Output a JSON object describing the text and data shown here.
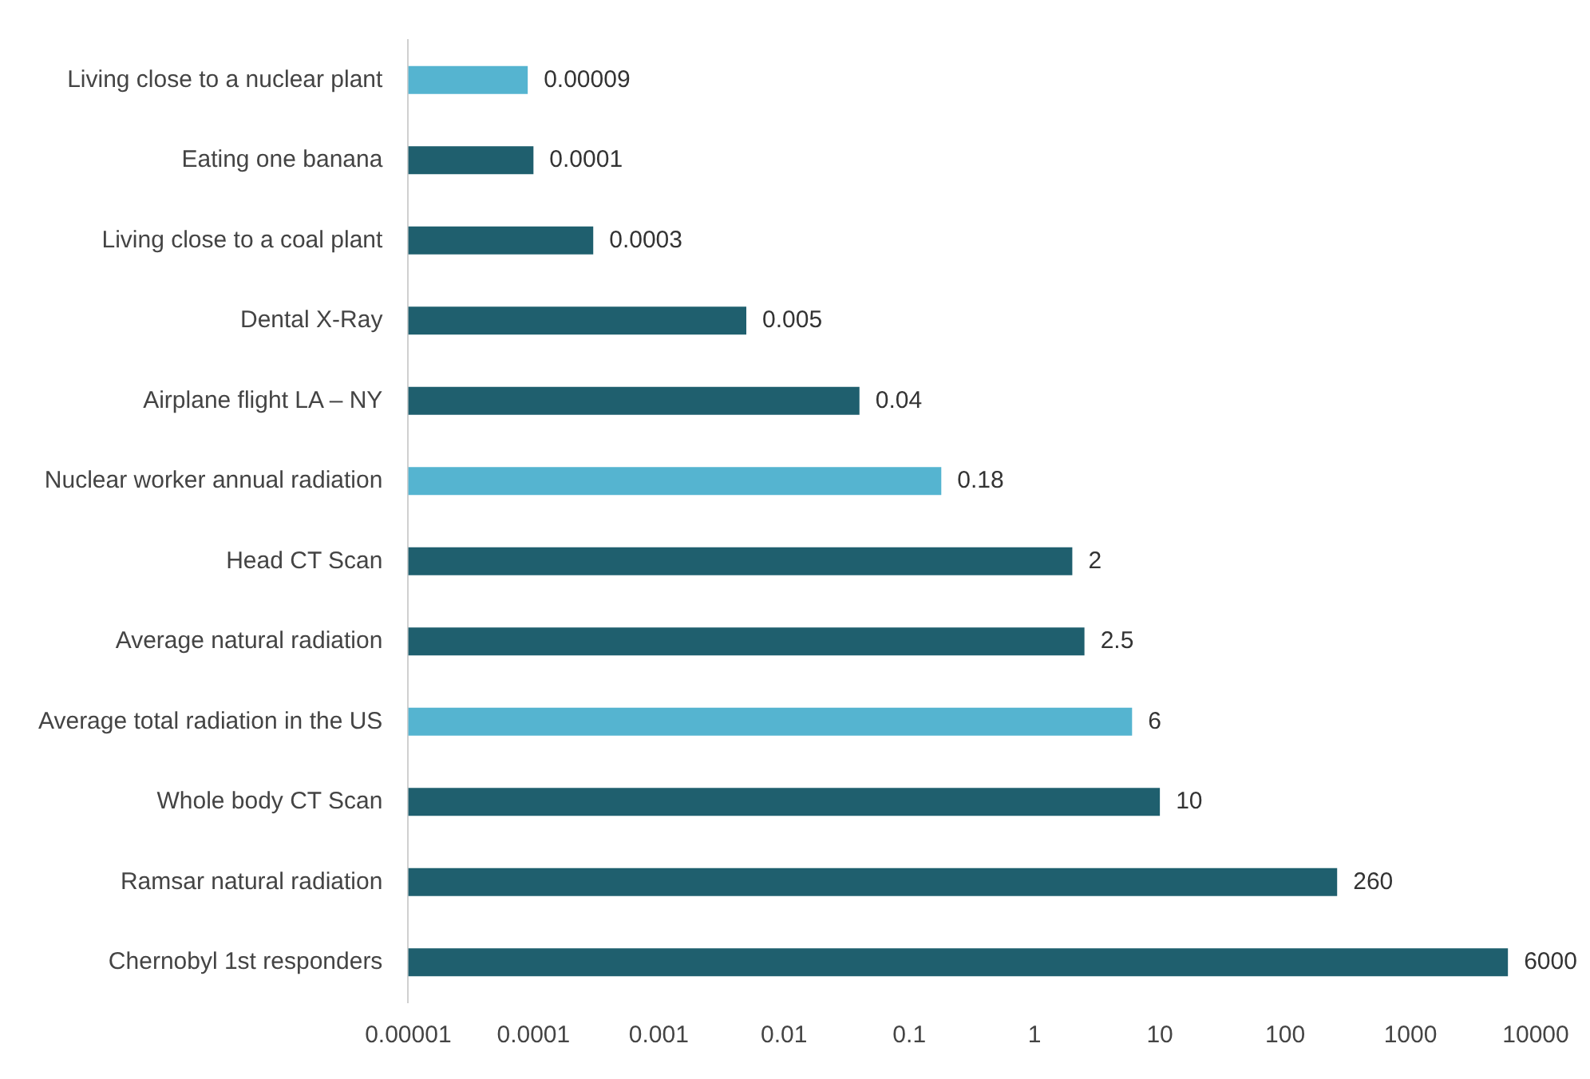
{
  "chart_data": {
    "type": "bar",
    "orientation": "horizontal",
    "log": "x",
    "categories": [
      "Living close to a nuclear plant",
      "Eating one banana",
      "Living close to a coal plant",
      "Dental X-Ray",
      "Airplane flight LA – NY",
      "Nuclear worker annual radiation",
      "Head CT Scan",
      "Average natural radiation",
      "Average total radiation in the US",
      "Whole body CT Scan",
      "Ramsar natural radiation",
      "Chernobyl 1st responders"
    ],
    "values": [
      9e-05,
      0.0001,
      0.0003,
      0.005,
      0.04,
      0.18,
      2,
      2.5,
      6,
      10,
      260,
      6000
    ],
    "colors": [
      "#55b4d0",
      "#1f5f6e",
      "#1f5f6e",
      "#1f5f6e",
      "#1f5f6e",
      "#55b4d0",
      "#1f5f6e",
      "#1f5f6e",
      "#55b4d0",
      "#1f5f6e",
      "#1f5f6e",
      "#1f5f6e"
    ],
    "xlim": [
      1e-05,
      10000
    ],
    "value_labels": [
      "0.00009",
      "0.0001",
      "0.0003",
      "0.005",
      "0.04",
      "0.18",
      "2",
      "2.5",
      "6",
      "10",
      "260",
      "6000"
    ],
    "xticks": [
      {
        "value": 1e-05,
        "label": "0.00001"
      },
      0.0001,
      0.001,
      0.01,
      0.1,
      1,
      10,
      100,
      1000,
      10000
    ],
    "grid": false,
    "legend": false
  }
}
